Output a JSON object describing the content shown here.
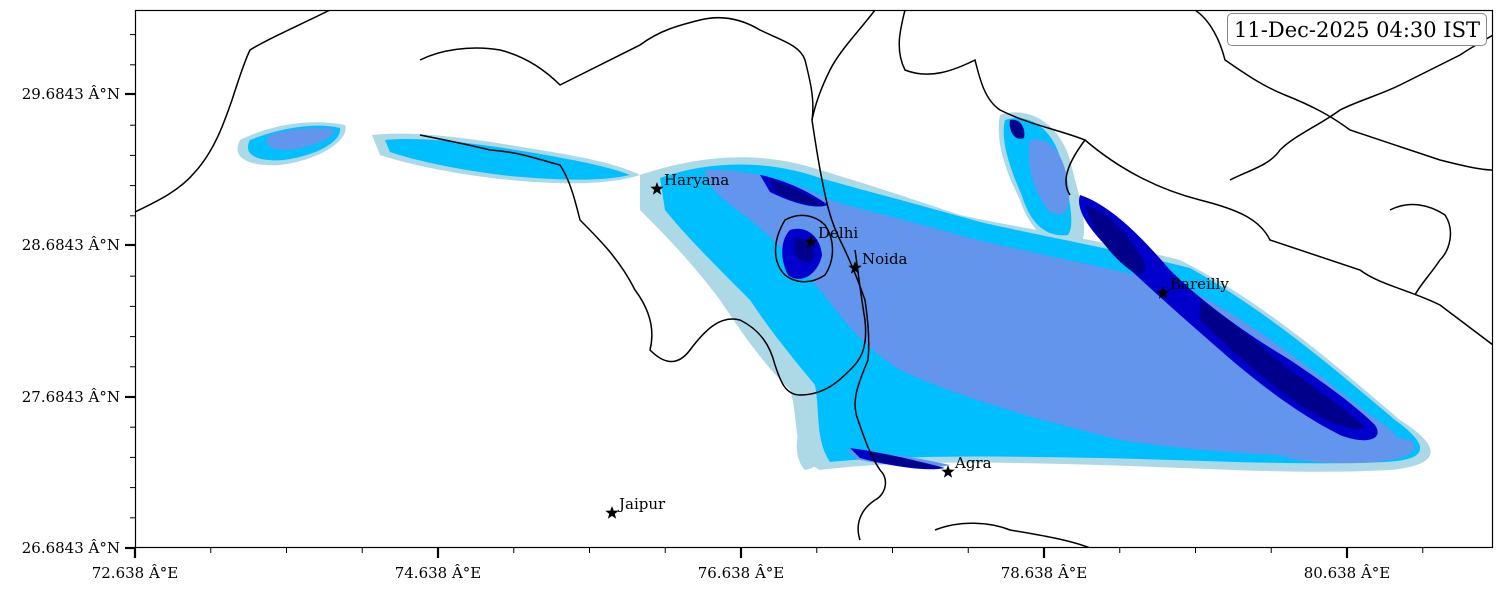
{
  "timestamp": "11-Dec-2025 04:30 IST",
  "colors": {
    "level1": "#add8e6",
    "level2": "#00bfff",
    "level3": "#6495ed",
    "level4": "#0000cd",
    "level5": "#00008b",
    "boundary": "#000000"
  },
  "axes": {
    "x_ticks": [
      "72.638 Â°E",
      "74.638 Â°E",
      "76.638 Â°E",
      "78.638 Â°E",
      "80.638 Â°E"
    ],
    "y_ticks": [
      "26.6843 Â°N",
      "27.6843 Â°N",
      "28.6843 Â°N",
      "29.6843 Â°N"
    ]
  },
  "cities": [
    {
      "name": "Haryana"
    },
    {
      "name": "Delhi"
    },
    {
      "name": "Noida"
    },
    {
      "name": "Bareilly"
    },
    {
      "name": "Agra"
    },
    {
      "name": "Jaipur"
    }
  ]
}
